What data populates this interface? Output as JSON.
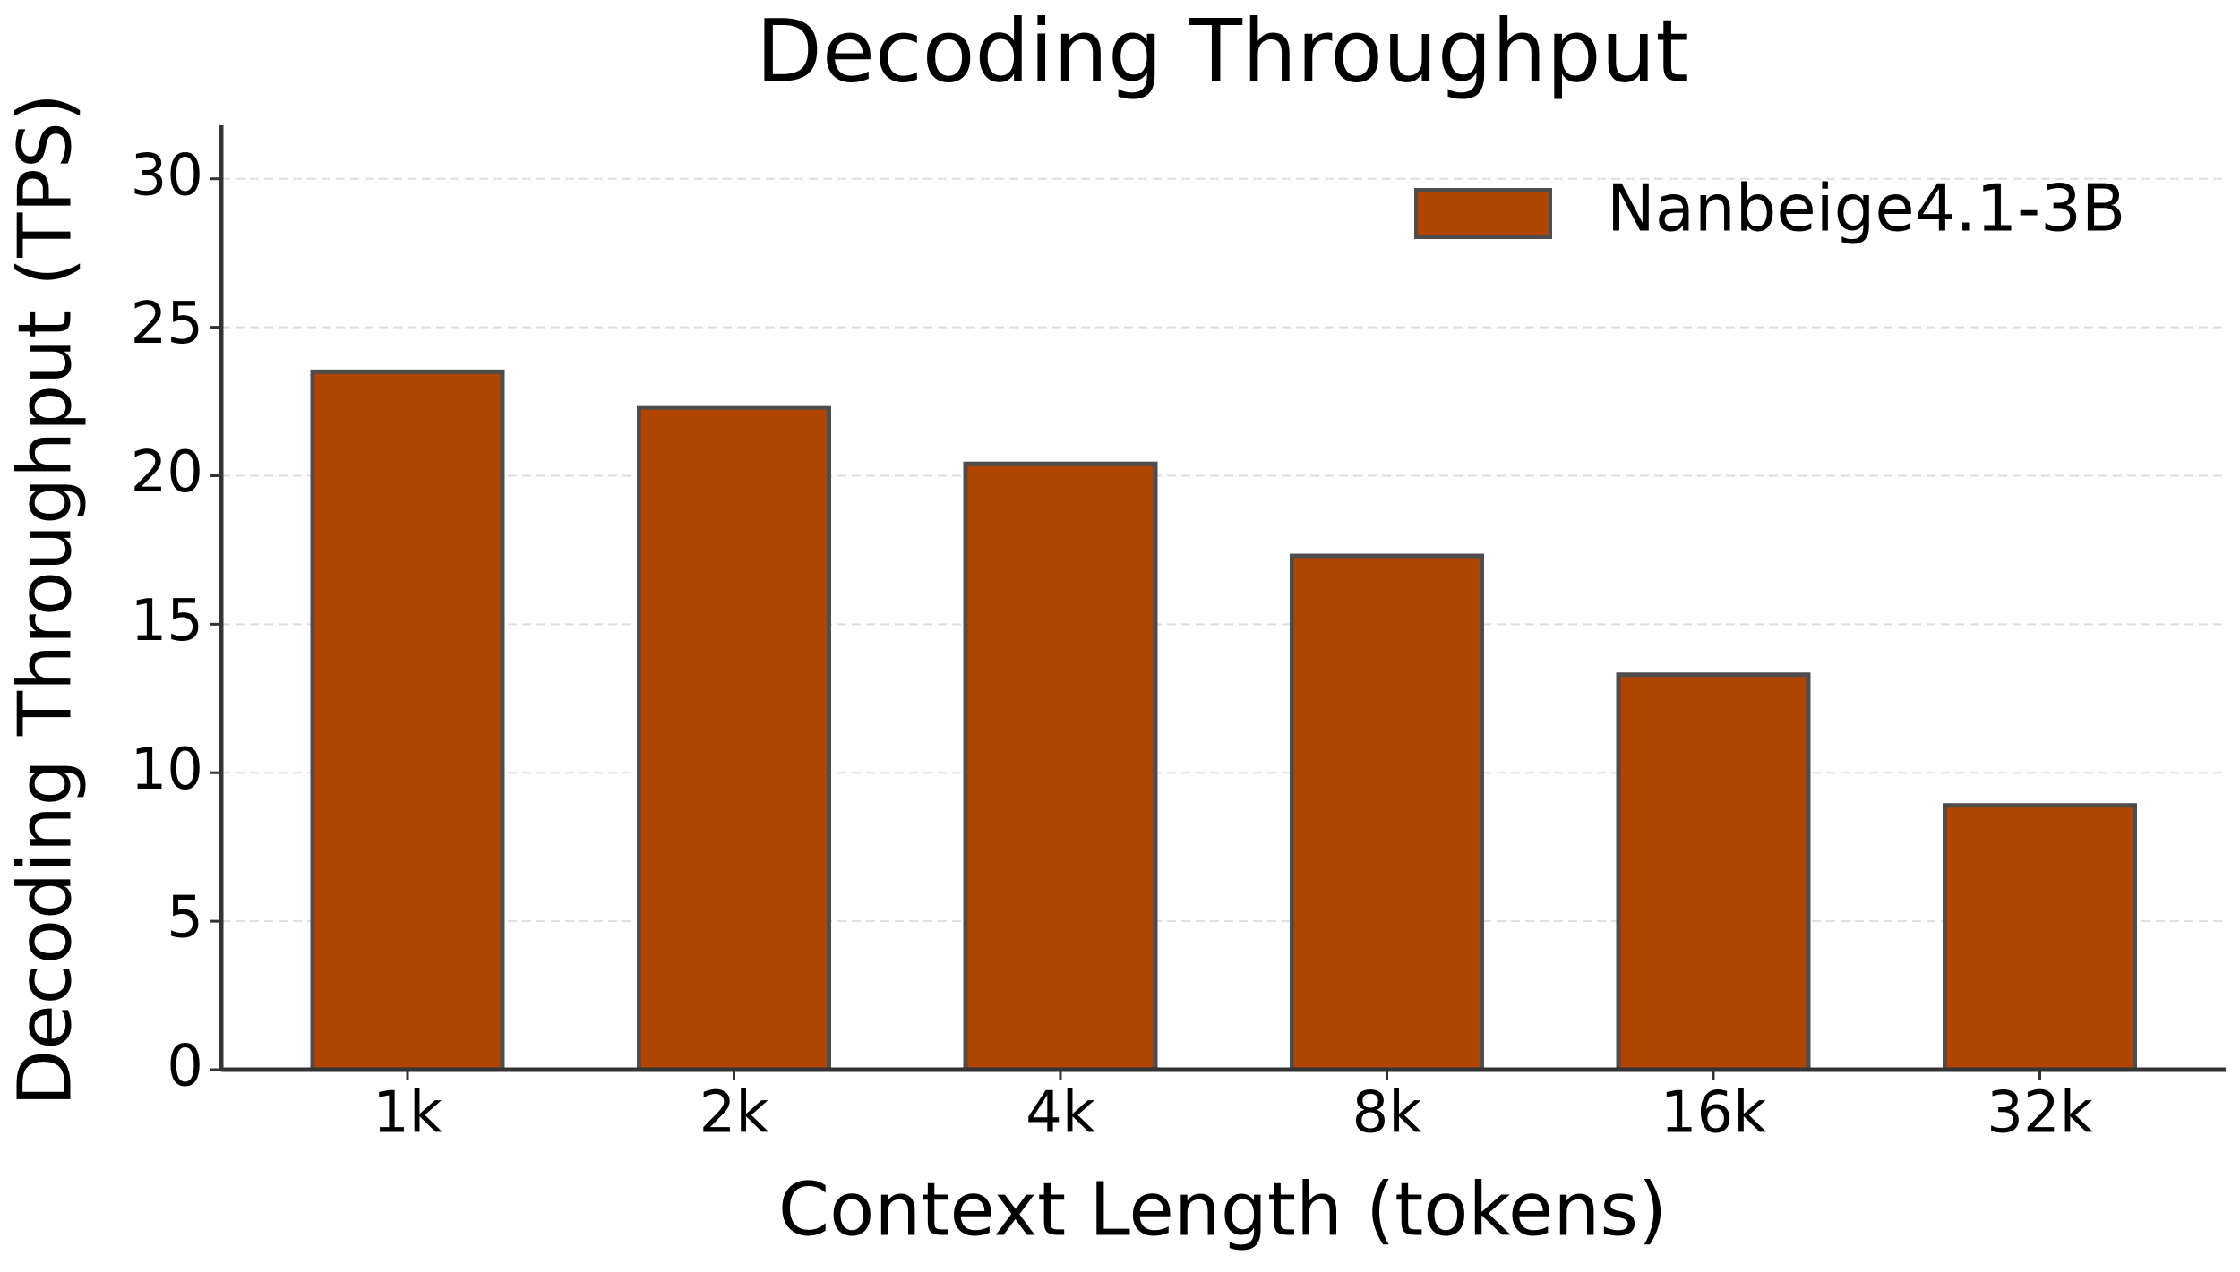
{
  "chart_data": {
    "type": "bar",
    "title": "Decoding Throughput",
    "x_label": "Context Length (tokens)",
    "y_label": "Decoding Throughput (TPS)",
    "categories": [
      "1k",
      "2k",
      "4k",
      "8k",
      "16k",
      "32k"
    ],
    "series": [
      {
        "name": "Nanbeige4.1-3B",
        "color": "#b04500",
        "values": [
          23.5,
          22.3,
          20.4,
          17.3,
          13.3,
          8.9
        ]
      }
    ],
    "ylim": [
      0,
      31.8
    ],
    "yticks": [
      0,
      5,
      10,
      15,
      20,
      25,
      30
    ],
    "grid": true,
    "legend": "upper right"
  }
}
